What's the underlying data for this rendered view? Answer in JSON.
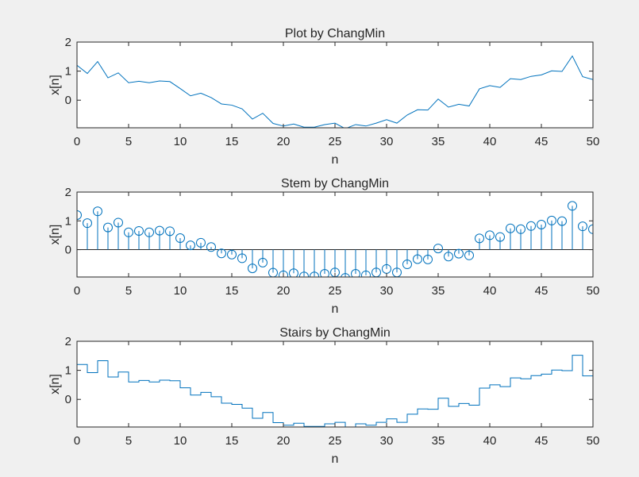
{
  "figure": {
    "background": "#f0f0f0",
    "line_color": "#0072bd",
    "axes_color": "#262626"
  },
  "chart_data": [
    {
      "type": "line",
      "title": "Plot by ChangMin",
      "xlabel": "n",
      "ylabel": "x[n]",
      "xlim": [
        0,
        50
      ],
      "ylim": [
        -0.95,
        2
      ],
      "xticks": [
        0,
        5,
        10,
        15,
        20,
        25,
        30,
        35,
        40,
        45,
        50
      ],
      "yticks": [
        0,
        1,
        2
      ],
      "grid": false,
      "series": [
        {
          "x": [
            0,
            1,
            2,
            3,
            4,
            5,
            6,
            7,
            8,
            9,
            10,
            11,
            12,
            13,
            14,
            15,
            16,
            17,
            18,
            19,
            20,
            21,
            22,
            23,
            24,
            25,
            26,
            27,
            28,
            29,
            30,
            31,
            32,
            33,
            34,
            35,
            36,
            37,
            38,
            39,
            40,
            41,
            42,
            43,
            44,
            45,
            46,
            47,
            48,
            49,
            50
          ],
          "values": [
            1.2,
            0.92,
            1.33,
            0.77,
            0.94,
            0.6,
            0.65,
            0.6,
            0.66,
            0.64,
            0.4,
            0.15,
            0.24,
            0.09,
            -0.13,
            -0.17,
            -0.3,
            -0.65,
            -0.45,
            -0.8,
            -0.89,
            -0.82,
            -0.93,
            -0.93,
            -0.84,
            -0.79,
            -0.98,
            -0.84,
            -0.89,
            -0.79,
            -0.67,
            -0.79,
            -0.51,
            -0.33,
            -0.34,
            0.04,
            -0.24,
            -0.14,
            -0.2,
            0.39,
            0.5,
            0.44,
            0.74,
            0.71,
            0.82,
            0.87,
            1.01,
            0.99,
            1.52,
            0.81,
            0.71
          ]
        }
      ]
    },
    {
      "type": "stem",
      "title": "Stem by ChangMin",
      "xlabel": "n",
      "ylabel": "x[n]",
      "xlim": [
        0,
        50
      ],
      "ylim": [
        -0.95,
        2
      ],
      "xticks": [
        0,
        5,
        10,
        15,
        20,
        25,
        30,
        35,
        40,
        45,
        50
      ],
      "yticks": [
        0,
        1,
        2
      ],
      "grid": false,
      "series": [
        {
          "x": [
            0,
            1,
            2,
            3,
            4,
            5,
            6,
            7,
            8,
            9,
            10,
            11,
            12,
            13,
            14,
            15,
            16,
            17,
            18,
            19,
            20,
            21,
            22,
            23,
            24,
            25,
            26,
            27,
            28,
            29,
            30,
            31,
            32,
            33,
            34,
            35,
            36,
            37,
            38,
            39,
            40,
            41,
            42,
            43,
            44,
            45,
            46,
            47,
            48,
            49,
            50
          ],
          "values": [
            1.2,
            0.92,
            1.33,
            0.77,
            0.94,
            0.6,
            0.65,
            0.6,
            0.66,
            0.64,
            0.4,
            0.15,
            0.24,
            0.09,
            -0.13,
            -0.17,
            -0.3,
            -0.65,
            -0.45,
            -0.8,
            -0.89,
            -0.82,
            -0.93,
            -0.93,
            -0.84,
            -0.79,
            -0.98,
            -0.84,
            -0.89,
            -0.79,
            -0.67,
            -0.79,
            -0.51,
            -0.33,
            -0.34,
            0.04,
            -0.24,
            -0.14,
            -0.2,
            0.39,
            0.5,
            0.44,
            0.74,
            0.71,
            0.82,
            0.87,
            1.01,
            0.99,
            1.52,
            0.81,
            0.71
          ]
        }
      ]
    },
    {
      "type": "stairs",
      "title": "Stairs by ChangMin",
      "xlabel": "n",
      "ylabel": "x[n]",
      "xlim": [
        0,
        50
      ],
      "ylim": [
        -0.95,
        2
      ],
      "xticks": [
        0,
        5,
        10,
        15,
        20,
        25,
        30,
        35,
        40,
        45,
        50
      ],
      "yticks": [
        0,
        1,
        2
      ],
      "grid": false,
      "series": [
        {
          "x": [
            0,
            1,
            2,
            3,
            4,
            5,
            6,
            7,
            8,
            9,
            10,
            11,
            12,
            13,
            14,
            15,
            16,
            17,
            18,
            19,
            20,
            21,
            22,
            23,
            24,
            25,
            26,
            27,
            28,
            29,
            30,
            31,
            32,
            33,
            34,
            35,
            36,
            37,
            38,
            39,
            40,
            41,
            42,
            43,
            44,
            45,
            46,
            47,
            48,
            49,
            50
          ],
          "values": [
            1.2,
            0.92,
            1.33,
            0.77,
            0.94,
            0.6,
            0.65,
            0.6,
            0.66,
            0.64,
            0.4,
            0.15,
            0.24,
            0.09,
            -0.13,
            -0.17,
            -0.3,
            -0.65,
            -0.45,
            -0.8,
            -0.89,
            -0.82,
            -0.93,
            -0.93,
            -0.84,
            -0.79,
            -0.98,
            -0.84,
            -0.89,
            -0.79,
            -0.67,
            -0.79,
            -0.51,
            -0.33,
            -0.34,
            0.04,
            -0.24,
            -0.14,
            -0.2,
            0.39,
            0.5,
            0.44,
            0.74,
            0.71,
            0.82,
            0.87,
            1.01,
            0.99,
            1.52,
            0.81,
            0.71
          ]
        }
      ]
    }
  ]
}
